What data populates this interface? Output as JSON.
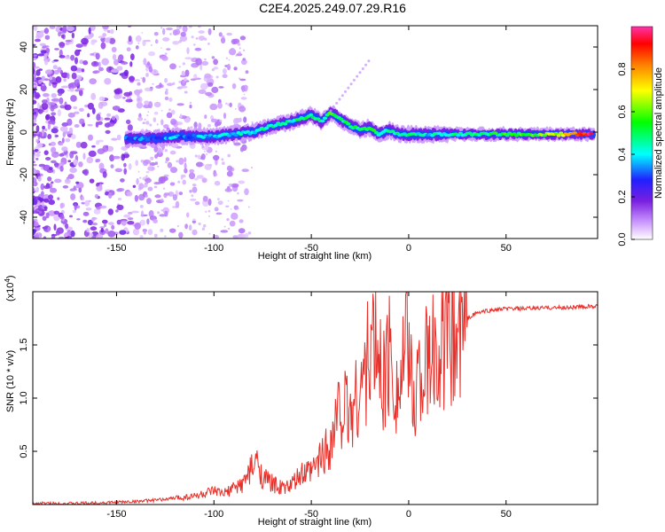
{
  "title": "C2E4.2025.249.07.29.R16",
  "chart_data": [
    {
      "type": "heatmap",
      "xlabel": "Height of straight line (km)",
      "ylabel": "Frequency (Hz)",
      "xlim": [
        -193,
        97
      ],
      "ylim": [
        -50,
        50
      ],
      "xticks": [
        -150,
        -100,
        -50,
        0,
        50
      ],
      "yticks": [
        -40,
        -20,
        0,
        20,
        40
      ],
      "colorbar": {
        "label": "Normalized spectral amplitude",
        "range": [
          0,
          1
        ],
        "ticks": [
          0.0,
          0.2,
          0.4,
          0.6,
          0.8
        ],
        "colors": [
          "#ffffff",
          "#cc99ff",
          "#7a1fe0",
          "#2020ff",
          "#00ffff",
          "#00ff00",
          "#ffff00",
          "#ff8000",
          "#ff0000",
          "#ff33aa"
        ]
      },
      "ridge": {
        "x": [
          -145,
          -130,
          -120,
          -110,
          -100,
          -90,
          -80,
          -70,
          -60,
          -50,
          -45,
          -40,
          -35,
          -30,
          -25,
          -20,
          -15,
          -10,
          -5,
          0,
          10,
          20,
          40,
          60,
          80,
          95
        ],
        "frequency": [
          -3,
          -3,
          -2,
          -2,
          -2,
          -1,
          0,
          3,
          5,
          8,
          5,
          9,
          6,
          3,
          1,
          2,
          -1,
          1,
          -1,
          -1,
          -1,
          -1,
          -1,
          -1,
          -1,
          -1
        ],
        "amplitude": [
          0.3,
          0.3,
          0.35,
          0.35,
          0.35,
          0.4,
          0.4,
          0.45,
          0.45,
          0.5,
          0.45,
          0.55,
          0.5,
          0.5,
          0.45,
          0.55,
          0.45,
          0.45,
          0.45,
          0.45,
          0.4,
          0.45,
          0.5,
          0.55,
          0.7,
          1.0
        ]
      }
    },
    {
      "type": "line",
      "xlabel": "Height of straight line (km)",
      "ylabel": "SNR (10 * v/v)",
      "y_multiplier_label": "(x10",
      "y_multiplier_exp": "4",
      "xlim": [
        -193,
        97
      ],
      "ylim": [
        0,
        2.0
      ],
      "xticks": [
        -150,
        -100,
        -50,
        0,
        50
      ],
      "yticks": [
        0.5,
        1.0,
        1.5
      ],
      "color": "#e8302a",
      "series": [
        {
          "x": [
            -193,
            -170,
            -150,
            -140,
            -130,
            -120,
            -110,
            -100,
            -95,
            -90,
            -85,
            -80,
            -77,
            -75,
            -70,
            -65,
            -60,
            -55,
            -50,
            -45,
            -40,
            -35,
            -30,
            -25,
            -20,
            -18,
            -15,
            -12,
            -10,
            -5,
            0,
            2,
            5,
            10,
            15,
            20,
            25,
            30,
            35,
            40,
            50,
            60,
            70,
            80,
            90,
            97
          ],
          "y": [
            0.01,
            0.01,
            0.02,
            0.03,
            0.04,
            0.06,
            0.08,
            0.12,
            0.1,
            0.15,
            0.2,
            0.35,
            0.4,
            0.25,
            0.2,
            0.15,
            0.18,
            0.28,
            0.3,
            0.45,
            0.6,
            0.95,
            0.85,
            1.1,
            1.4,
            1.55,
            1.3,
            1.2,
            1.45,
            1.05,
            1.6,
            0.9,
            1.25,
            1.3,
            1.45,
            1.5,
            1.6,
            1.75,
            1.8,
            1.82,
            1.84,
            1.84,
            1.85,
            1.85,
            1.86,
            1.86
          ]
        }
      ]
    }
  ]
}
